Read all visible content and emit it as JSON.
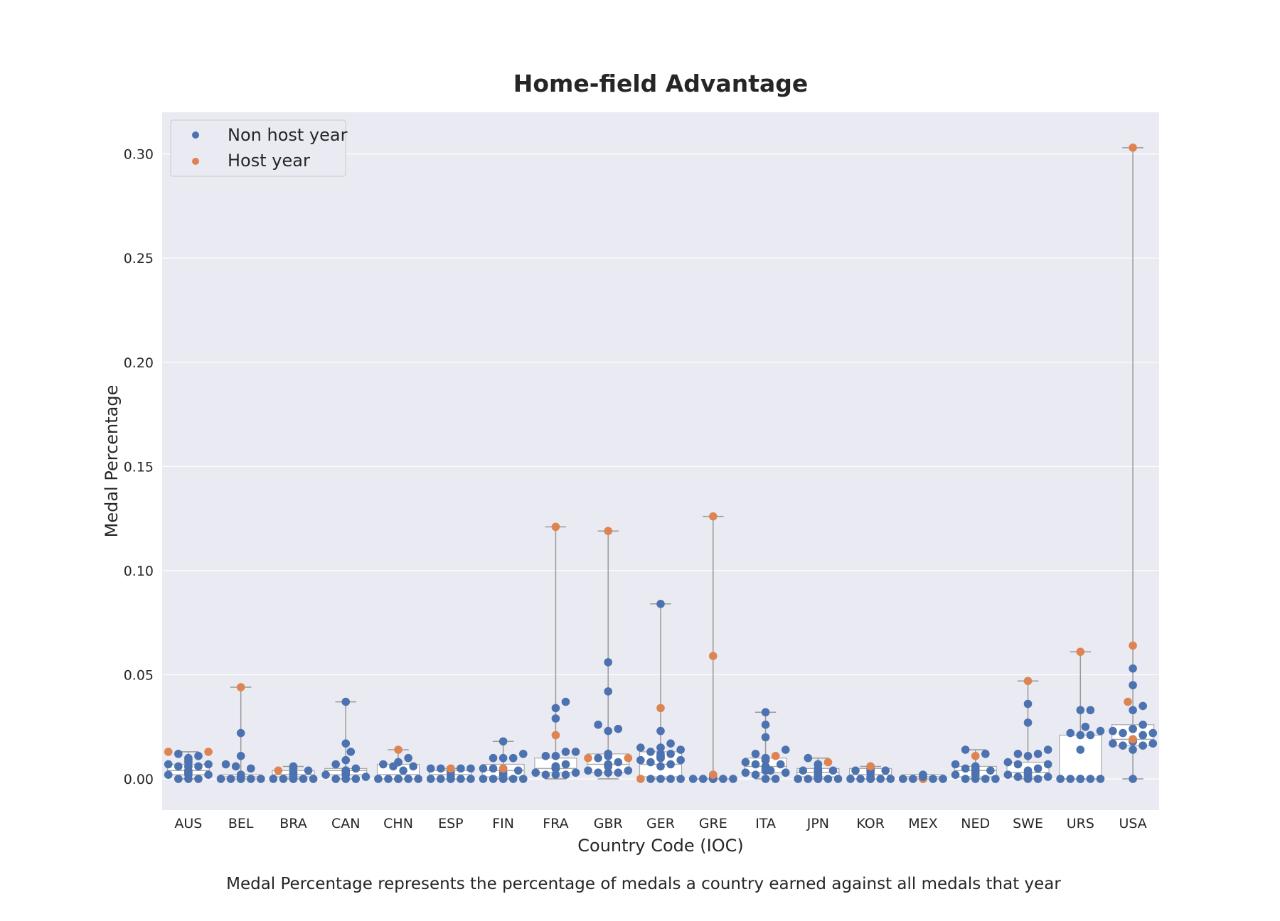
{
  "chart_data": {
    "type": "box-swarm",
    "title": "Home-field Advantage",
    "xlabel": "Country Code (IOC)",
    "ylabel": "Medal Percentage",
    "caption": "Medal Percentage represents the percentage of medals a country earned against all medals that year",
    "ylim": [
      -0.015,
      0.32
    ],
    "yticks": [
      "0.00",
      "0.05",
      "0.10",
      "0.15",
      "0.20",
      "0.25",
      "0.30"
    ],
    "grid": true,
    "legend_position": "upper-left",
    "colors": {
      "non_host": "#4c72b0",
      "host": "#dd8452",
      "background": "#eaeaf2",
      "grid": "#ffffff",
      "box_edge": "#aaaaaa",
      "whisker": "#999999"
    },
    "legend": [
      {
        "label": "Non host year",
        "color": "#4c72b0"
      },
      {
        "label": "Host year",
        "color": "#dd8452"
      }
    ],
    "categories": [
      "AUS",
      "BEL",
      "BRA",
      "CAN",
      "CHN",
      "ESP",
      "FIN",
      "FRA",
      "GBR",
      "GER",
      "GRE",
      "ITA",
      "JPN",
      "KOR",
      "MEX",
      "NED",
      "SWE",
      "URS",
      "USA"
    ],
    "countries": [
      {
        "code": "AUS",
        "box": [
          0.0,
          0.002,
          0.004,
          0.007,
          0.013
        ],
        "non_host": [
          0.008,
          0.007,
          0.003,
          0.002,
          0.011,
          0.006,
          0.004,
          0.0,
          0.009,
          0.007,
          0.0,
          0.01,
          0.006,
          0.002,
          0.0,
          0.012,
          0.006,
          0.004,
          0.002,
          0.006,
          0.003
        ],
        "host": [
          0.013,
          0.013
        ]
      },
      {
        "code": "BEL",
        "box": [
          0.0,
          0.0,
          0.001,
          0.002,
          0.044
        ],
        "non_host": [
          0.002,
          0.001,
          0.0,
          0.0,
          0.007,
          0.0,
          0.022,
          0.011,
          0.005,
          0.0,
          0.006,
          0.0,
          0.001,
          0.002,
          0.0
        ],
        "host": [
          0.044
        ]
      },
      {
        "code": "BRA",
        "box": [
          0.0,
          0.001,
          0.002,
          0.004,
          0.006
        ],
        "non_host": [
          0.002,
          0.0,
          0.006,
          0.003,
          0.0,
          0.005,
          0.0,
          0.004,
          0.0,
          0.0,
          0.005,
          0.003,
          0.0,
          0.003,
          0.001
        ],
        "host": [
          0.004
        ]
      },
      {
        "code": "CAN",
        "box": [
          0.0,
          0.002,
          0.004,
          0.005,
          0.037
        ],
        "non_host": [
          0.003,
          0.001,
          0.007,
          0.004,
          0.0,
          0.004,
          0.017,
          0.013,
          0.009,
          0.037,
          0.0,
          0.004,
          0.0,
          0.005,
          0.004,
          0.002,
          0.004,
          0.002
        ],
        "host": []
      },
      {
        "code": "CHN",
        "box": [
          0.0,
          0.0,
          0.002,
          0.007,
          0.014
        ],
        "non_host": [
          0.008,
          0.0,
          0.008,
          0.0,
          0.006,
          0.0,
          0.004,
          0.01,
          0.0,
          0.006,
          0.0,
          0.007,
          0.0,
          0.008,
          0.0
        ],
        "host": [
          0.014
        ]
      },
      {
        "code": "ESP",
        "box": [
          0.0,
          0.0,
          0.002,
          0.004,
          0.005
        ],
        "non_host": [
          0.003,
          0.001,
          0.0,
          0.005,
          0.0,
          0.005,
          0.0,
          0.005,
          0.0,
          0.0,
          0.005,
          0.003,
          0.0,
          0.001
        ],
        "host": [
          0.005
        ]
      },
      {
        "code": "FIN",
        "box": [
          0.0,
          0.001,
          0.004,
          0.007,
          0.018
        ],
        "non_host": [
          0.003,
          0.0,
          0.005,
          0.012,
          0.0,
          0.005,
          0.01,
          0.0,
          0.004,
          0.018,
          0.01,
          0.0,
          0.005,
          0.01,
          0.0,
          0.002,
          0.0
        ],
        "host": [
          0.005
        ]
      },
      {
        "code": "FRA",
        "box": [
          0.0,
          0.003,
          0.005,
          0.01,
          0.121
        ],
        "non_host": [
          0.007,
          0.003,
          0.005,
          0.013,
          0.002,
          0.006,
          0.013,
          0.037,
          0.034,
          0.029,
          0.011,
          0.002,
          0.005,
          0.011,
          0.006,
          0.002,
          0.006,
          0.003,
          0.005
        ],
        "host": [
          0.121,
          0.021
        ]
      },
      {
        "code": "GBR",
        "box": [
          0.0,
          0.003,
          0.007,
          0.012,
          0.119
        ],
        "non_host": [
          0.012,
          0.004,
          0.003,
          0.01,
          0.024,
          0.007,
          0.011,
          0.003,
          0.023,
          0.056,
          0.042,
          0.006,
          0.026,
          0.011,
          0.003,
          0.012,
          0.006,
          0.008,
          0.004,
          0.011
        ],
        "host": [
          0.119,
          0.01,
          0.01
        ]
      },
      {
        "code": "GER",
        "box": [
          0.0,
          0.001,
          0.007,
          0.013,
          0.084
        ],
        "non_host": [
          0.013,
          0.009,
          0.01,
          0.007,
          0.015,
          0.011,
          0.0,
          0.014,
          0.023,
          0.017,
          0.084,
          0.008,
          0.01,
          0.0,
          0.012,
          0.006,
          0.015,
          0.0,
          0.011,
          0.015,
          0.012,
          0.0,
          0.009
        ],
        "host": [
          0.0,
          0.034
        ]
      },
      {
        "code": "GRE",
        "box": [
          0.0,
          0.0,
          0.0,
          0.0,
          0.126
        ],
        "non_host": [
          0.002,
          0.001,
          0.0,
          0.0,
          0.0,
          0.0,
          0.0,
          0.0,
          0.001,
          0.0
        ],
        "host": [
          0.126,
          0.059,
          0.002
        ]
      },
      {
        "code": "ITA",
        "box": [
          0.0,
          0.003,
          0.006,
          0.01,
          0.032
        ],
        "non_host": [
          0.012,
          0.009,
          0.004,
          0.006,
          0.002,
          0.01,
          0.0,
          0.005,
          0.032,
          0.026,
          0.02,
          0.014,
          0.009,
          0.007,
          0.004,
          0.0,
          0.01,
          0.006,
          0.003,
          0.008,
          0.004,
          0.007,
          0.005,
          0.003
        ],
        "host": [
          0.011
        ]
      },
      {
        "code": "JPN",
        "box": [
          0.0,
          0.001,
          0.003,
          0.005,
          0.01
        ],
        "non_host": [
          0.007,
          0.005,
          0.003,
          0.001,
          0.0,
          0.004,
          0.0,
          0.002,
          0.004,
          0.0,
          0.004,
          0.0,
          0.01,
          0.004,
          0.0,
          0.007,
          0.004,
          0.002,
          0.0,
          0.001
        ],
        "host": [
          0.008
        ]
      },
      {
        "code": "KOR",
        "box": [
          0.0,
          0.0,
          0.002,
          0.005,
          0.006
        ],
        "non_host": [
          0.004,
          0.001,
          0.0,
          0.004,
          0.0,
          0.004,
          0.0,
          0.004,
          0.0,
          0.005,
          0.0,
          0.006,
          0.003,
          0.001,
          0.0
        ],
        "host": [
          0.006
        ]
      },
      {
        "code": "MEX",
        "box": [
          0.0,
          0.0,
          0.001,
          0.002,
          0.002
        ],
        "non_host": [
          0.002,
          0.001,
          0.0,
          0.0,
          0.0,
          0.0,
          0.0,
          0.001,
          0.002
        ],
        "host": [
          0.0
        ]
      },
      {
        "code": "NED",
        "box": [
          0.0,
          0.001,
          0.004,
          0.006,
          0.014
        ],
        "non_host": [
          0.006,
          0.004,
          0.002,
          0.0,
          0.004,
          0.0,
          0.012,
          0.004,
          0.0,
          0.005,
          0.014,
          0.0,
          0.006,
          0.004,
          0.003,
          0.002,
          0.005,
          0.007
        ],
        "host": [
          0.011
        ]
      },
      {
        "code": "SWE",
        "box": [
          0.0,
          0.001,
          0.003,
          0.008,
          0.047
        ],
        "non_host": [
          0.003,
          0.002,
          0.001,
          0.014,
          0.007,
          0.0,
          0.011,
          0.004,
          0.036,
          0.027,
          0.008,
          0.0,
          0.012,
          0.005,
          0.002,
          0.012,
          0.007,
          0.001,
          0.003,
          0.002
        ],
        "host": [
          0.047
        ]
      },
      {
        "code": "URS",
        "box": [
          0.0,
          0.0,
          0.0,
          0.021,
          0.061
        ],
        "non_host": [
          0.0,
          0.023,
          0.0,
          0.021,
          0.0,
          0.014,
          0.025,
          0.0,
          0.033,
          0.021,
          0.033,
          0.0,
          0.022,
          0.0,
          0.0
        ],
        "host": [
          0.061
        ]
      },
      {
        "code": "USA",
        "box": [
          0.0,
          0.016,
          0.019,
          0.026,
          0.303
        ],
        "non_host": [
          0.018,
          0.017,
          0.024,
          0.035,
          0.016,
          0.022,
          0.023,
          0.019,
          0.026,
          0.033,
          0.018,
          0.053,
          0.045,
          0.014,
          0.022,
          0.024,
          0.016,
          0.021,
          0.018,
          0.017,
          0.019,
          0.0
        ],
        "host": [
          0.303,
          0.064,
          0.037,
          0.019
        ]
      }
    ]
  }
}
